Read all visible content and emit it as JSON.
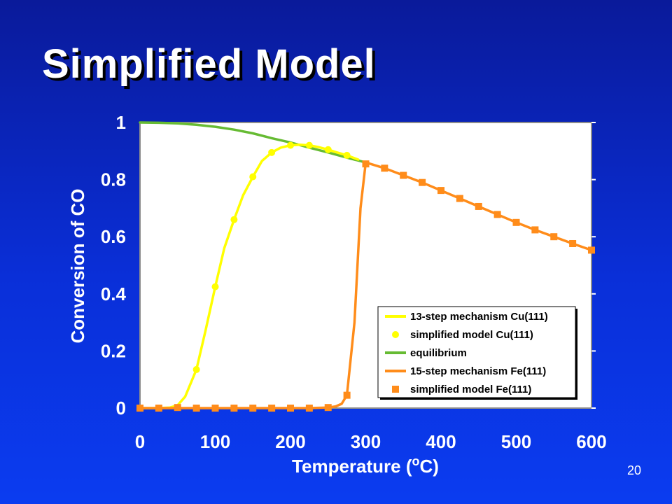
{
  "slide": {
    "title": "Simplified Model",
    "page_number": "20"
  },
  "colors": {
    "cu_series": "#ffff00",
    "equilibrium": "#66bb33",
    "fe_series": "#ff8c1a",
    "plot_background": "#ffffff",
    "slide_background": "#0a2fd8"
  },
  "chart_data": {
    "type": "scatter",
    "xlabel": "Temperature (oC)",
    "ylabel": "Conversion of CO",
    "xlim": [
      0,
      600
    ],
    "ylim": [
      0,
      1
    ],
    "x_ticks": [
      "0",
      "100",
      "200",
      "300",
      "400",
      "500",
      "600"
    ],
    "y_ticks": [
      "0",
      "0.2",
      "0.4",
      "0.6",
      "0.8",
      "1"
    ],
    "grid": false,
    "legend_position": "bottom-right",
    "series": [
      {
        "name": "13-step mechanism Cu(111)",
        "type": "line",
        "color": "#ffff00",
        "x": [
          0,
          25,
          40,
          50,
          60,
          75,
          87,
          100,
          112,
          125,
          137,
          150,
          162,
          175,
          187,
          200,
          212,
          225,
          237,
          250,
          262,
          275,
          290
        ],
        "y": [
          0,
          0,
          0.002,
          0.01,
          0.04,
          0.135,
          0.27,
          0.425,
          0.56,
          0.66,
          0.745,
          0.81,
          0.865,
          0.895,
          0.912,
          0.92,
          0.922,
          0.92,
          0.914,
          0.905,
          0.895,
          0.885,
          0.87
        ]
      },
      {
        "name": "simplified model Cu(111)",
        "type": "scatter",
        "marker": "circle",
        "color": "#ffff00",
        "x": [
          75,
          100,
          125,
          150,
          175,
          200,
          225,
          250,
          275
        ],
        "y": [
          0.135,
          0.425,
          0.66,
          0.81,
          0.895,
          0.92,
          0.92,
          0.905,
          0.885
        ]
      },
      {
        "name": "equilibrium",
        "type": "line",
        "color": "#66bb33",
        "x": [
          0,
          25,
          50,
          75,
          100,
          125,
          150,
          175,
          200,
          225,
          250,
          275,
          300
        ],
        "y": [
          1.0,
          0.999,
          0.997,
          0.992,
          0.985,
          0.975,
          0.962,
          0.945,
          0.93,
          0.912,
          0.895,
          0.877,
          0.86
        ]
      },
      {
        "name": "15-step mechanism Fe(111)",
        "type": "line",
        "color": "#ff8c1a",
        "x": [
          0,
          25,
          50,
          75,
          100,
          125,
          150,
          175,
          200,
          225,
          250,
          260,
          268,
          275,
          285,
          293,
          300,
          325,
          350,
          375,
          400,
          425,
          450,
          475,
          500,
          525,
          550,
          575,
          600
        ],
        "y": [
          0,
          0,
          0,
          0,
          0,
          0,
          0,
          0,
          0,
          0,
          0.002,
          0.006,
          0.015,
          0.045,
          0.3,
          0.7,
          0.86,
          0.84,
          0.815,
          0.79,
          0.762,
          0.734,
          0.706,
          0.678,
          0.65,
          0.624,
          0.6,
          0.576,
          0.553
        ]
      },
      {
        "name": "simplified model Fe(111)",
        "type": "scatter",
        "marker": "square",
        "color": "#ff8c1a",
        "x": [
          0,
          25,
          50,
          75,
          100,
          125,
          150,
          175,
          200,
          225,
          250,
          275,
          300,
          325,
          350,
          375,
          400,
          425,
          450,
          475,
          500,
          525,
          550,
          575,
          600
        ],
        "y": [
          0,
          0,
          0.002,
          0,
          0,
          0,
          0,
          0,
          0,
          0,
          0.002,
          0.045,
          0.855,
          0.84,
          0.815,
          0.79,
          0.762,
          0.734,
          0.706,
          0.678,
          0.65,
          0.624,
          0.6,
          0.576,
          0.553
        ]
      }
    ]
  }
}
